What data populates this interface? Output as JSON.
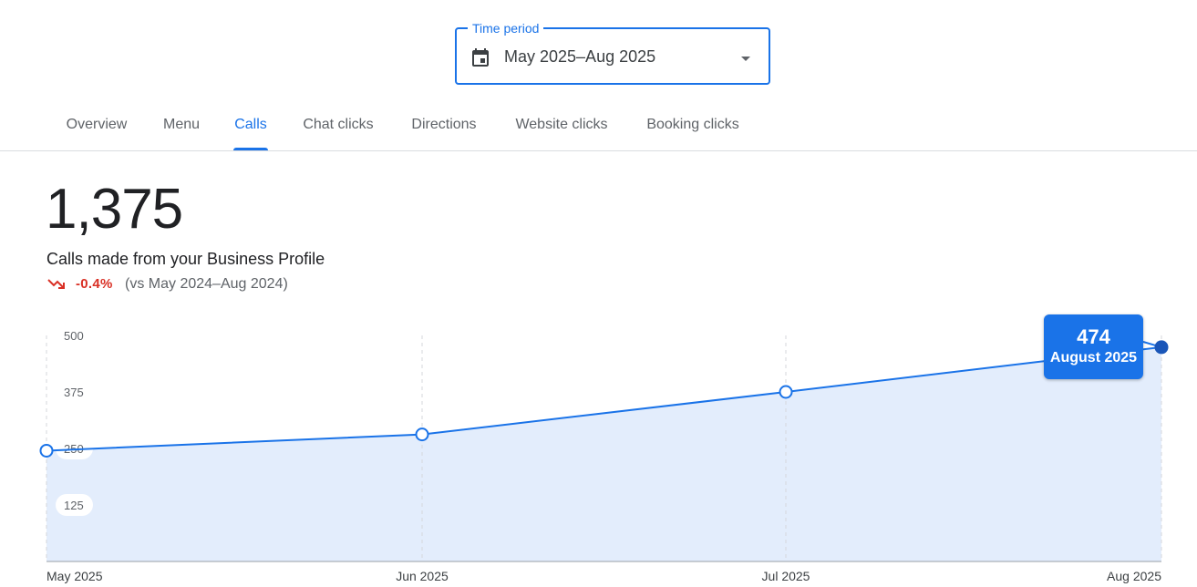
{
  "period_selector": {
    "label": "Time period",
    "value": "May 2025–Aug 2025",
    "icon": "calendar-icon",
    "caret_icon": "dropdown-arrow-icon"
  },
  "tabs": [
    {
      "label": "Overview",
      "active": false
    },
    {
      "label": "Menu",
      "active": false
    },
    {
      "label": "Calls",
      "active": true
    },
    {
      "label": "Chat clicks",
      "active": false
    },
    {
      "label": "Directions",
      "active": false
    },
    {
      "label": "Website clicks",
      "active": false
    },
    {
      "label": "Booking clicks",
      "active": false
    }
  ],
  "summary": {
    "total": "1,375",
    "label": "Calls made from your Business Profile",
    "change": "-0.4%",
    "comparison": "(vs May 2024–Aug 2024)",
    "trend_icon": "trending-down-icon"
  },
  "tooltip": {
    "value": "474",
    "month": "August 2025"
  },
  "colors": {
    "accent": "#1a73e8",
    "negative": "#d93025",
    "area_fill": "#e3edfc",
    "selected_point": "#1a56b8"
  },
  "chart_data": {
    "type": "area",
    "categories": [
      "May 2025",
      "Jun 2025",
      "Jul 2025",
      "Aug 2025"
    ],
    "series": [
      {
        "values": [
          245,
          281,
          375,
          474
        ]
      }
    ],
    "y_ticks": [
      "125",
      "250",
      "375",
      "500"
    ],
    "ylim": [
      0,
      500
    ],
    "grid": "vertical dashed",
    "highlighted_index": 3
  }
}
